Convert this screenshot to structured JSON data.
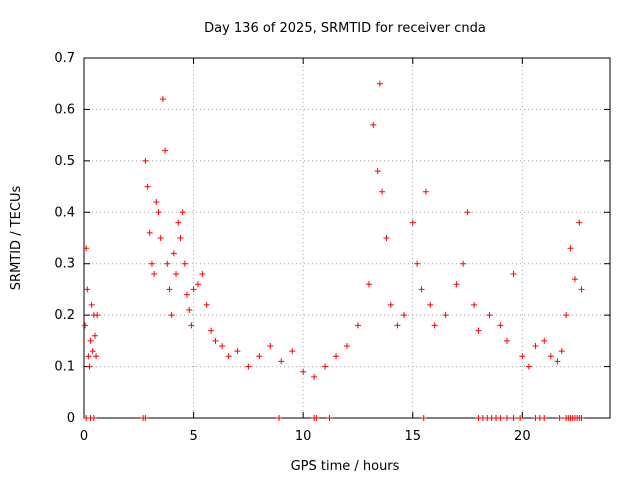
{
  "chart_data": {
    "type": "scatter",
    "title": "Day 136 of 2025, SRMTID for receiver cnda",
    "xlabel": "GPS time / hours",
    "ylabel": "SRMTID / TECUs",
    "xlim": [
      0,
      24
    ],
    "ylim": [
      0,
      0.7
    ],
    "xticks": [
      0,
      5,
      10,
      15,
      20
    ],
    "xtick_labels": [
      "0",
      "5",
      "10",
      "15",
      "20"
    ],
    "yticks": [
      0,
      0.1,
      0.2,
      0.3,
      0.4,
      0.5,
      0.6,
      0.7
    ],
    "ytick_labels": [
      "0",
      "0.1",
      "0.2",
      "0.3",
      "0.4",
      "0.5",
      "0.6",
      "0.7"
    ],
    "grid": true,
    "marker": "+",
    "color": "#ff0000",
    "series": [
      {
        "name": "SRMTID",
        "x": [
          0.05,
          0.1,
          0.15,
          0.2,
          0.25,
          0.3,
          0.35,
          0.4,
          0.45,
          0.5,
          0.55,
          0.6,
          2.8,
          2.9,
          3.0,
          3.1,
          3.2,
          3.3,
          3.4,
          3.5,
          3.6,
          3.7,
          3.8,
          3.9,
          4.0,
          4.1,
          4.2,
          4.3,
          4.4,
          4.5,
          4.6,
          4.7,
          4.8,
          4.9,
          5.0,
          5.2,
          5.4,
          5.6,
          5.8,
          6.0,
          6.3,
          6.6,
          7.0,
          7.5,
          8.0,
          8.5,
          9.0,
          9.5,
          10.0,
          10.5,
          11.0,
          11.5,
          12.0,
          12.5,
          13.0,
          13.2,
          13.4,
          13.5,
          13.6,
          13.8,
          14.0,
          14.3,
          14.6,
          15.0,
          15.2,
          15.4,
          15.6,
          15.8,
          16.0,
          16.5,
          17.0,
          17.3,
          17.5,
          17.8,
          18.0,
          18.5,
          19.0,
          19.3,
          19.6,
          20.0,
          20.3,
          20.6,
          21.0,
          21.3,
          21.6,
          21.8,
          22.0,
          22.2,
          22.4,
          22.6,
          22.7
        ],
        "y": [
          0.18,
          0.33,
          0.25,
          0.12,
          0.1,
          0.15,
          0.22,
          0.13,
          0.2,
          0.16,
          0.12,
          0.2,
          0.5,
          0.45,
          0.36,
          0.3,
          0.28,
          0.42,
          0.4,
          0.35,
          0.62,
          0.52,
          0.3,
          0.25,
          0.2,
          0.32,
          0.28,
          0.38,
          0.35,
          0.4,
          0.3,
          0.24,
          0.21,
          0.18,
          0.25,
          0.26,
          0.28,
          0.22,
          0.17,
          0.15,
          0.14,
          0.12,
          0.13,
          0.1,
          0.12,
          0.14,
          0.11,
          0.13,
          0.09,
          0.08,
          0.1,
          0.12,
          0.14,
          0.18,
          0.26,
          0.57,
          0.48,
          0.65,
          0.44,
          0.35,
          0.22,
          0.18,
          0.2,
          0.38,
          0.3,
          0.25,
          0.44,
          0.22,
          0.18,
          0.2,
          0.26,
          0.3,
          0.4,
          0.22,
          0.17,
          0.2,
          0.18,
          0.15,
          0.28,
          0.12,
          0.1,
          0.14,
          0.15,
          0.12,
          0.11,
          0.13,
          0.2,
          0.33,
          0.27,
          0.38,
          0.25
        ],
        "zero_markers_x": [
          0.1,
          0.3,
          0.45,
          2.7,
          2.8,
          8.9,
          10.5,
          10.6,
          11.2,
          15.5,
          18.0,
          18.2,
          18.4,
          18.6,
          18.8,
          19.0,
          19.3,
          19.6,
          19.9,
          20.6,
          20.8,
          21.0,
          21.7,
          22.0,
          22.1,
          22.2,
          22.3,
          22.4,
          22.5,
          22.6,
          22.7
        ]
      }
    ]
  }
}
